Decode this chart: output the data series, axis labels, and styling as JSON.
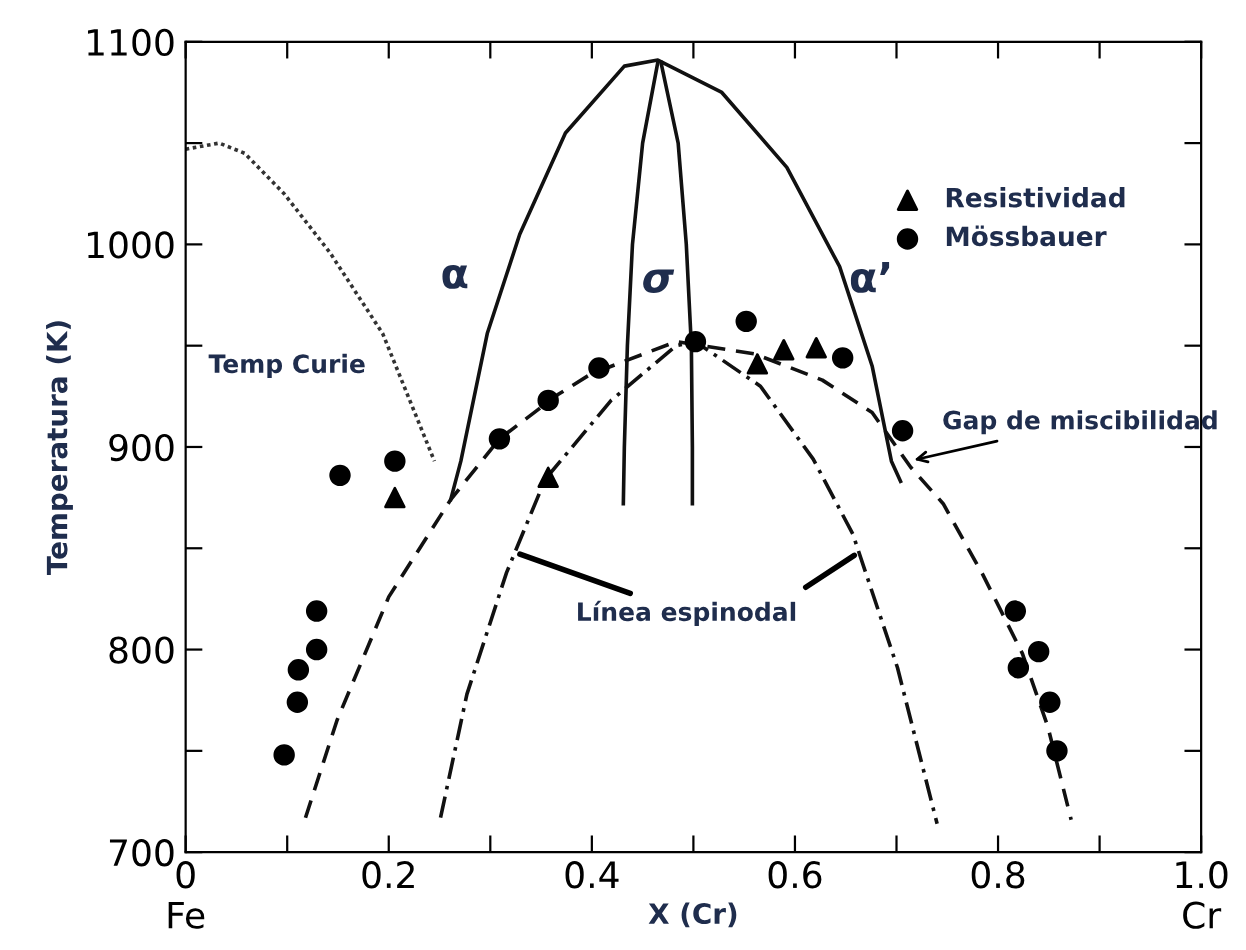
{
  "chart_data": {
    "type": "line",
    "xlabel": "X (Cr)",
    "ylabel": "Temperatura (K)",
    "xlim": [
      0,
      1.0
    ],
    "ylim": [
      700,
      1100
    ],
    "xticks": [
      {
        "value": 0,
        "label": "0\nFe"
      },
      {
        "value": 0.1,
        "label": null
      },
      0.2,
      {
        "value": 0.3,
        "label": null
      },
      0.4,
      {
        "value": 0.5,
        "label": null
      },
      0.6,
      {
        "value": 0.7,
        "label": null
      },
      0.8,
      {
        "value": 0.9,
        "label": null
      },
      {
        "value": 1.0,
        "label": "1.0\nCr"
      }
    ],
    "yticks": [
      700,
      {
        "value": 750,
        "label": null
      },
      800,
      {
        "value": 850,
        "label": null
      },
      900,
      {
        "value": 950,
        "label": null
      },
      1000,
      {
        "value": 1050,
        "label": null
      },
      1100
    ],
    "grid": false,
    "legend": "top right",
    "series": [
      {
        "line_style": "dotted",
        "color": "#333333",
        "x": [
          0,
          0.033,
          0.058,
          0.097,
          0.142,
          0.194,
          0.245
        ],
        "values": [
          1047,
          1050,
          1045,
          1025,
          996,
          956,
          893
        ]
      },
      {
        "line_style": "solid",
        "color": "#111111",
        "x": [
          0.261,
          0.271,
          0.297,
          0.329,
          0.374,
          0.432,
          0.465,
          0.528,
          0.592,
          0.644,
          0.676,
          0.695,
          0.704
        ],
        "values": [
          874,
          893,
          956,
          1005,
          1055,
          1088,
          1091,
          1075,
          1038,
          989,
          940,
          893,
          883
        ]
      },
      {
        "line_style": "solid",
        "color": "#111111",
        "x": [
          0.465,
          0.45,
          0.44,
          0.435,
          0.432,
          0.431
        ],
        "values": [
          1090,
          1050,
          1000,
          950,
          900,
          872
        ]
      },
      {
        "line_style": "solid",
        "color": "#111111",
        "x": [
          0.468,
          0.485,
          0.493,
          0.498,
          0.499,
          0.499
        ],
        "values": [
          1090,
          1050,
          1000,
          950,
          900,
          872
        ]
      },
      {
        "line_style": "dashed",
        "color": "#111111",
        "x": [
          0.118,
          0.149,
          0.2,
          0.261,
          0.309,
          0.367,
          0.399,
          0.483,
          0.56,
          0.627,
          0.676,
          0.714,
          0.746,
          0.785,
          0.824,
          0.849,
          0.872
        ],
        "values": [
          717,
          765,
          826,
          874,
          904,
          926,
          936,
          952,
          946,
          933,
          917,
          890,
          872,
          837,
          798,
          762,
          716
        ]
      },
      {
        "line_style": "dashdot",
        "color": "#111111",
        "x": [
          0.251,
          0.277,
          0.316,
          0.354,
          0.419,
          0.483,
          0.502,
          0.566,
          0.618,
          0.657,
          0.701,
          0.74
        ],
        "values": [
          717,
          778,
          838,
          884,
          923,
          950,
          952,
          930,
          894,
          857,
          791,
          714
        ]
      },
      {
        "type": "scatter",
        "name": "Resistividad",
        "marker": "triangle",
        "color": "#000000",
        "x": [
          0.206,
          0.357,
          0.563,
          0.589,
          0.621
        ],
        "values": [
          875,
          885,
          941,
          948,
          949
        ]
      },
      {
        "type": "scatter",
        "name": "Mössbauer",
        "marker": "circle",
        "color": "#000000",
        "x": [
          0.097,
          0.11,
          0.111,
          0.129,
          0.129,
          0.152,
          0.206,
          0.309,
          0.357,
          0.407,
          0.502,
          0.552,
          0.647,
          0.706,
          0.817,
          0.84,
          0.82,
          0.851,
          0.858
        ],
        "values": [
          748,
          774,
          790,
          800,
          819,
          886,
          893,
          904,
          923,
          939,
          952,
          962,
          944,
          908,
          819,
          799,
          791,
          774,
          750
        ]
      }
    ],
    "annotations": [
      "α",
      "σ",
      "α’",
      "Temp Curie",
      {
        "text": "Gap de miscibilidad",
        "x": 0.712,
        "y": 893
      },
      {
        "text": "Línea espinodal",
        "x": 0.324,
        "y": 848
      }
    ]
  }
}
